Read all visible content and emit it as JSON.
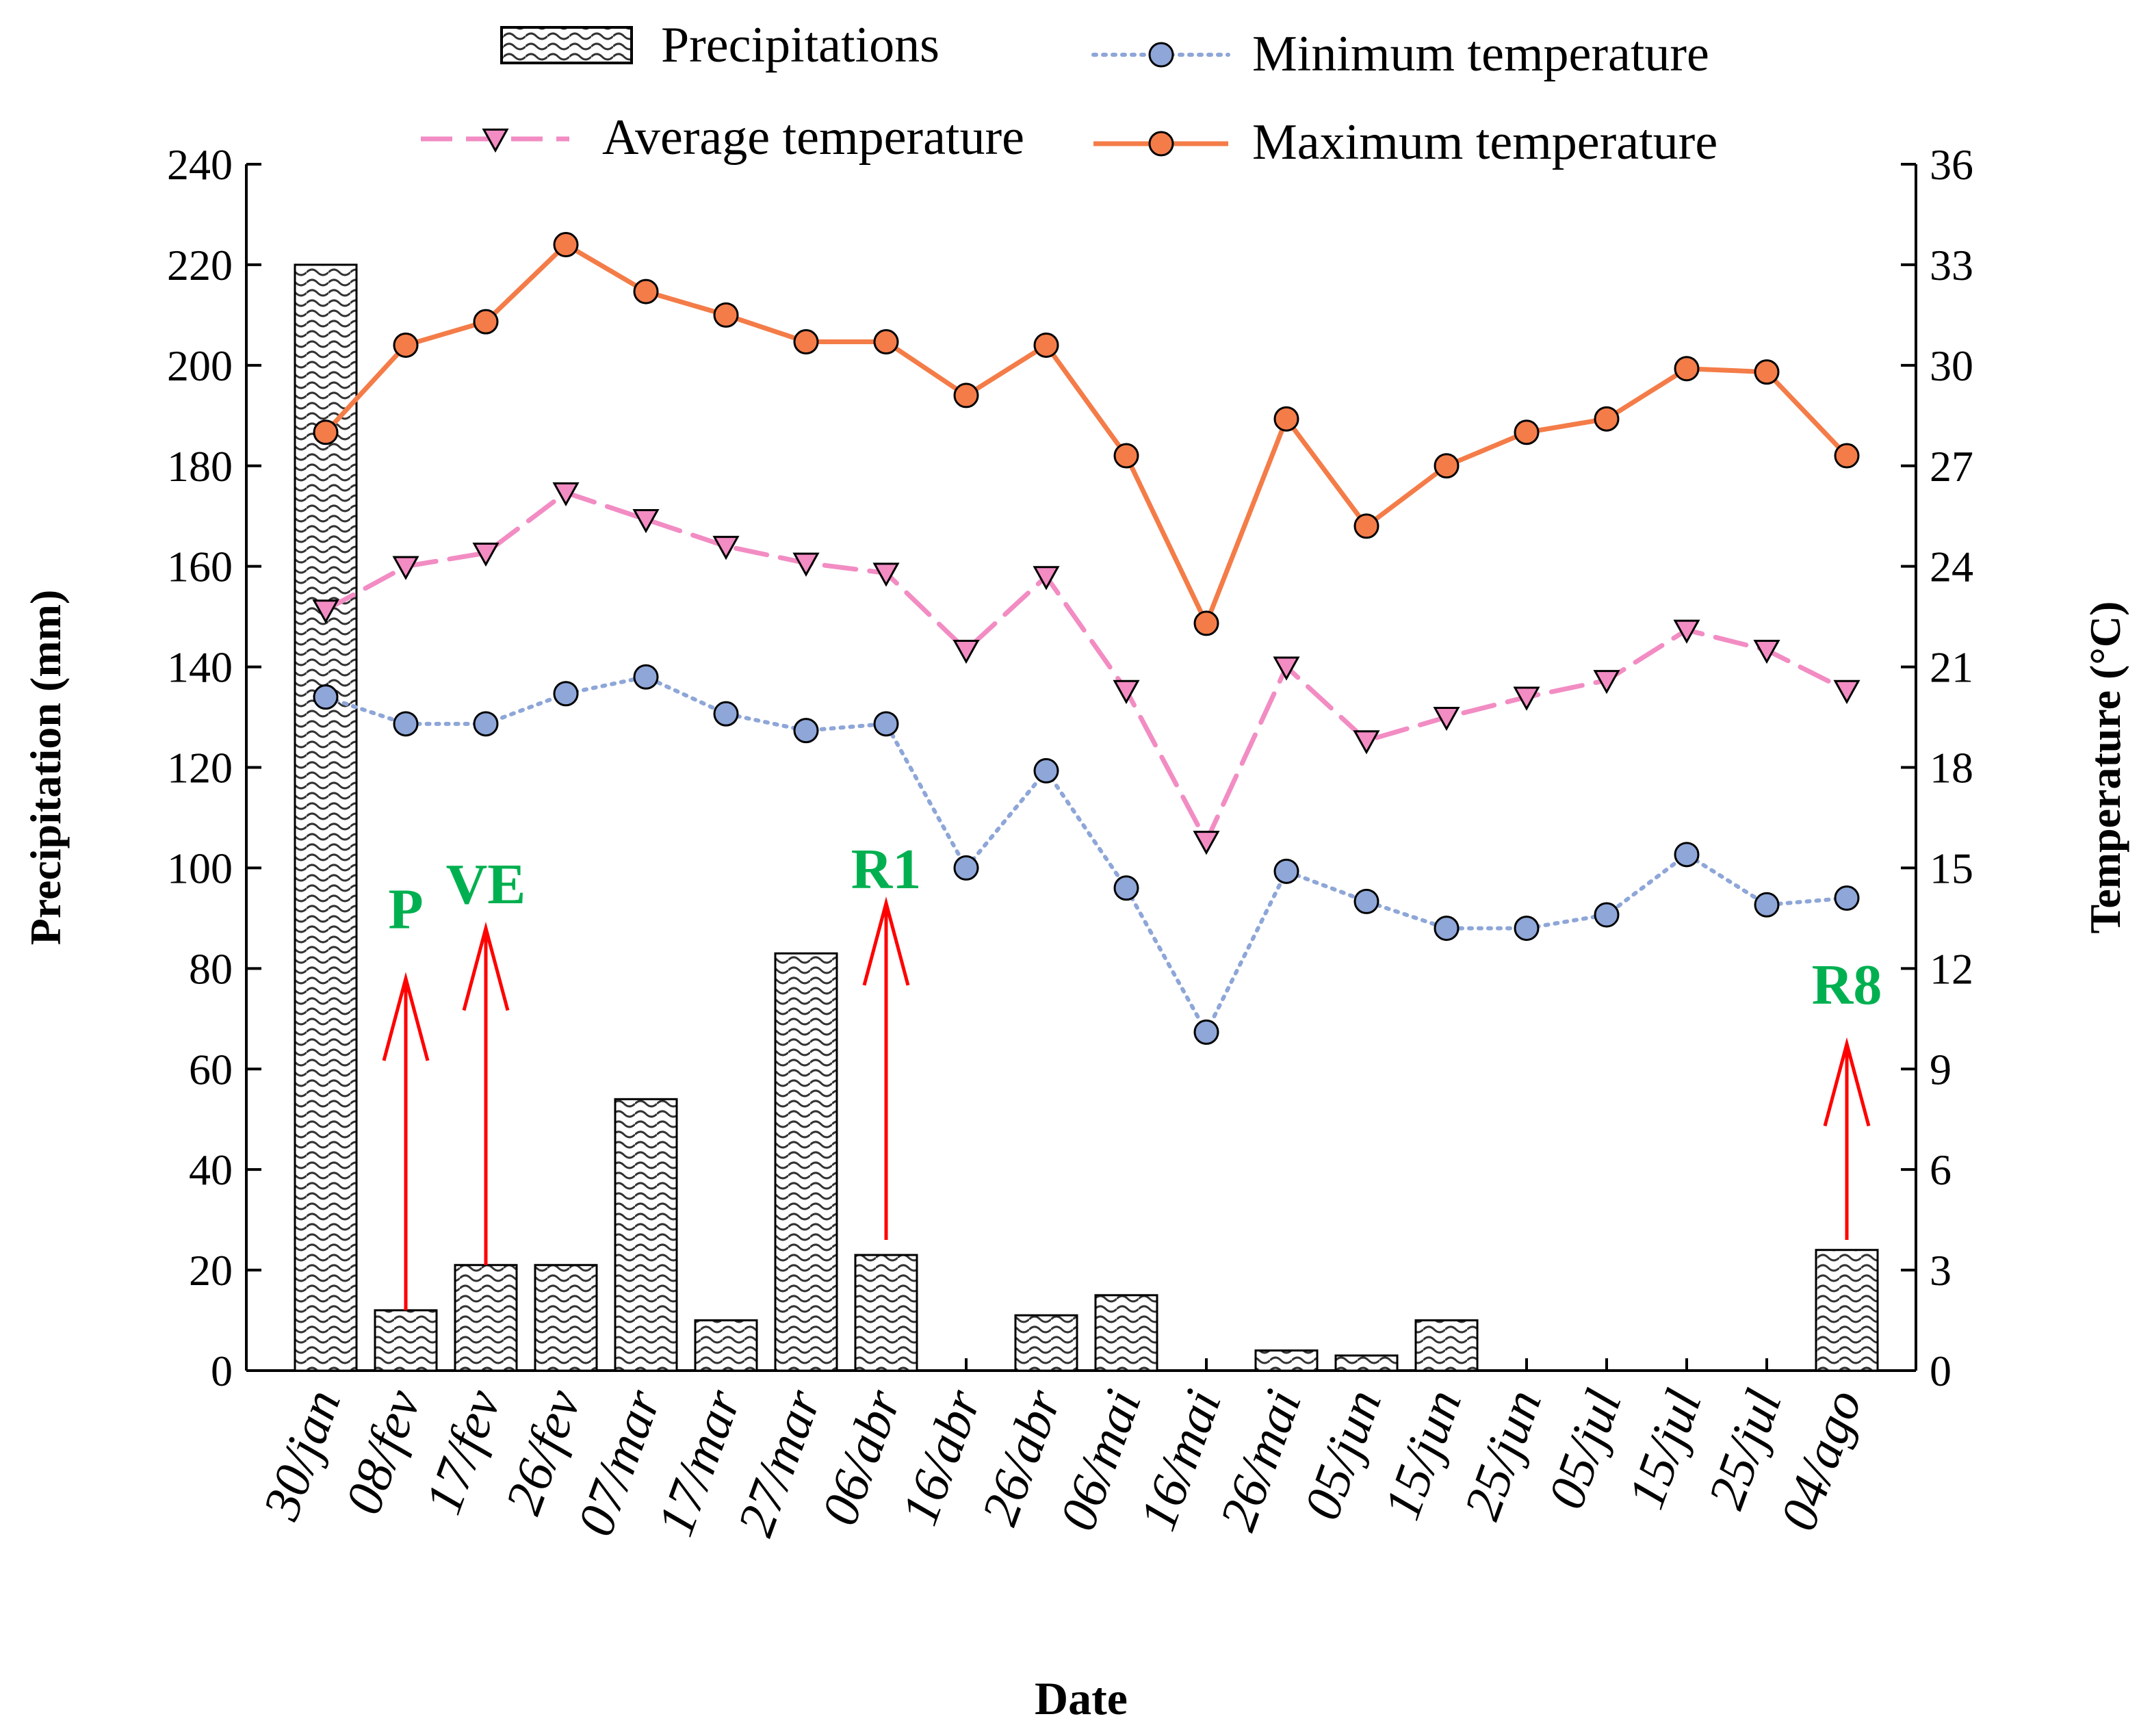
{
  "chart_data": {
    "type": "bar+line",
    "x_title": "Date",
    "y_left_title": "Precipitation (mm)",
    "y_right_title": "Temperature (°C)",
    "y_left_range": [
      0,
      240
    ],
    "y_right_range": [
      0,
      36
    ],
    "y_left_ticks": [
      "0",
      "20",
      "40",
      "60",
      "80",
      "100",
      "120",
      "140",
      "160",
      "180",
      "200",
      "220",
      "240"
    ],
    "y_right_ticks": [
      "0",
      "3",
      "6",
      "9",
      "12",
      "15",
      "18",
      "21",
      "24",
      "27",
      "30",
      "33",
      "36"
    ],
    "categories": [
      "30/jan",
      "08/fev",
      "17/fev",
      "26/fev",
      "07/mar",
      "17/mar",
      "27/mar",
      "06/abr",
      "16/abr",
      "26/abr",
      "06/mai",
      "16/mai",
      "26/mai",
      "05/jun",
      "15/jun",
      "25/jun",
      "05/jul",
      "15/jul",
      "25/jul",
      "04/ago"
    ],
    "legend": {
      "precipitation": "Precipitations",
      "minimum": "Minimum temperature",
      "average": "Average temperature",
      "maximum": "Maximum temperature"
    },
    "precipitation_mm": [
      220,
      12,
      21,
      21,
      54,
      10,
      83,
      23,
      0,
      11,
      15,
      0,
      4,
      3,
      10,
      0,
      0,
      0,
      0,
      24
    ],
    "temperature_series": [
      {
        "name": "Maximum temperature",
        "key": "max",
        "color": "#f47c48",
        "marker": "circle",
        "line": "solid",
        "values": [
          28.0,
          30.6,
          31.3,
          33.6,
          32.2,
          31.5,
          30.7,
          30.7,
          29.1,
          30.6,
          27.3,
          22.3,
          28.4,
          25.2,
          27.0,
          28.0,
          28.4,
          29.9,
          29.8,
          27.3
        ]
      },
      {
        "name": "Average temperature",
        "key": "avg",
        "color": "#f28cc3",
        "marker": "triangle-down",
        "line": "dashed",
        "values": [
          22.7,
          24.0,
          24.4,
          26.2,
          25.4,
          24.6,
          24.1,
          23.8,
          21.5,
          23.7,
          20.3,
          15.8,
          21.0,
          18.8,
          19.5,
          20.1,
          20.6,
          22.1,
          21.5,
          20.3
        ]
      },
      {
        "name": "Minimum temperature",
        "key": "min",
        "color": "#8ea6d8",
        "marker": "circle",
        "line": "dotted",
        "values": [
          20.1,
          19.3,
          19.3,
          20.2,
          20.7,
          19.6,
          19.1,
          19.3,
          15.0,
          17.9,
          14.4,
          10.1,
          14.9,
          14.0,
          13.2,
          13.2,
          13.6,
          15.4,
          13.9,
          14.1
        ]
      }
    ],
    "annotations": [
      {
        "label": "P",
        "category": "08/fev",
        "arrow_from_mm": 12,
        "arrow_to_mm": 78,
        "label_at_mm": 88
      },
      {
        "label": "VE",
        "category": "17/fev",
        "arrow_from_mm": 21,
        "arrow_to_mm": 88,
        "label_at_mm": 93
      },
      {
        "label": "R1",
        "category": "06/abr",
        "arrow_from_mm": 26,
        "arrow_to_mm": 93,
        "label_at_mm": 96
      },
      {
        "label": "R8",
        "category": "04/ago",
        "arrow_from_mm": 26,
        "arrow_to_mm": 65,
        "label_at_mm": 73
      }
    ]
  }
}
